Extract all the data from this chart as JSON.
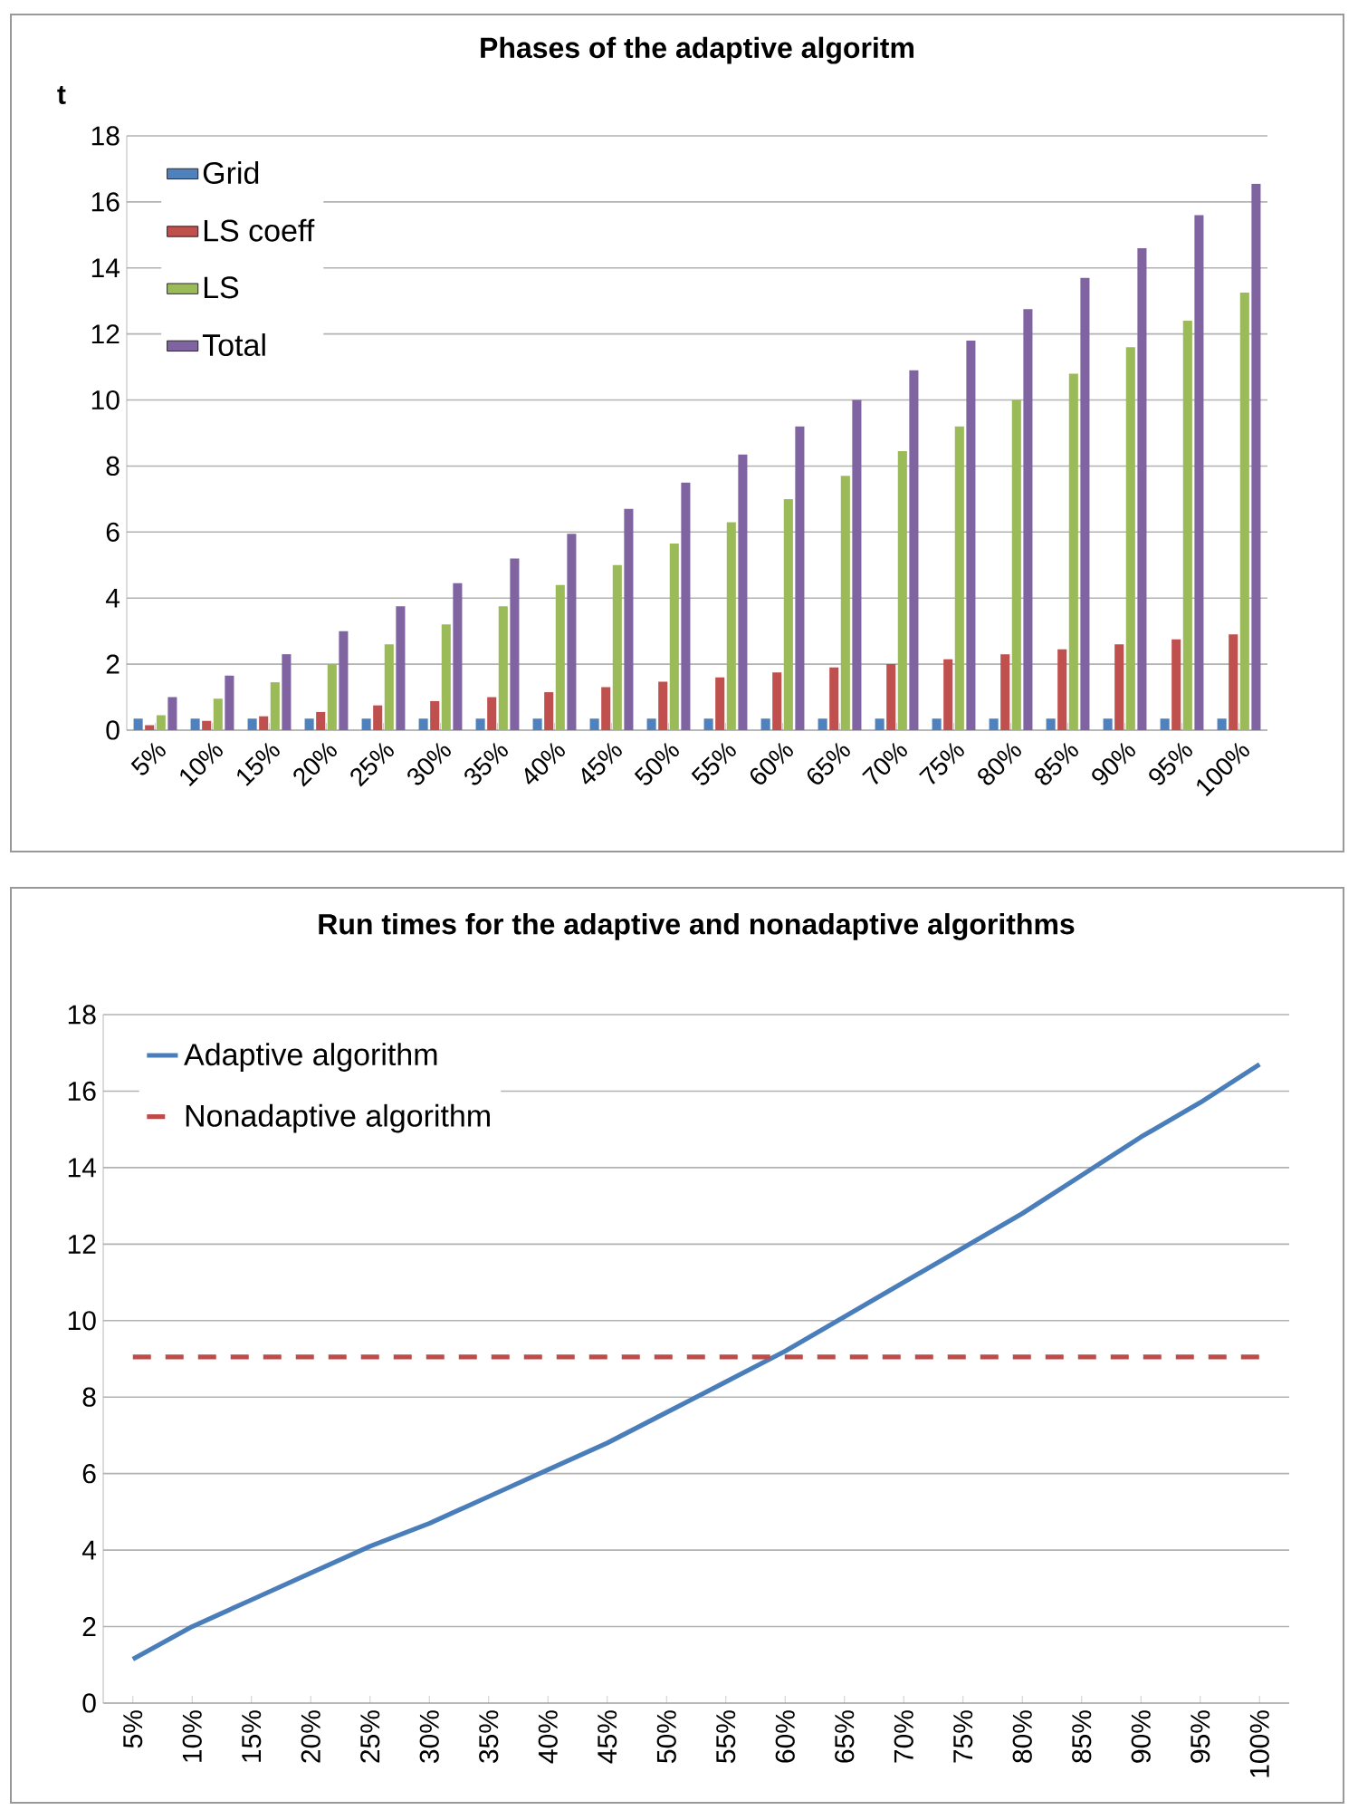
{
  "chart_data": [
    {
      "type": "bar",
      "title": "Phases of the adaptive algoritm",
      "ylabel": "t",
      "categories": [
        "5%",
        "10%",
        "15%",
        "20%",
        "25%",
        "30%",
        "35%",
        "40%",
        "45%",
        "50%",
        "55%",
        "60%",
        "65%",
        "70%",
        "75%",
        "80%",
        "85%",
        "90%",
        "95%",
        "100%"
      ],
      "series": [
        {
          "name": "Grid",
          "color": "#4f81bd",
          "values": [
            0.35,
            0.35,
            0.35,
            0.35,
            0.35,
            0.35,
            0.35,
            0.35,
            0.35,
            0.35,
            0.35,
            0.35,
            0.35,
            0.35,
            0.35,
            0.35,
            0.35,
            0.35,
            0.35,
            0.35
          ]
        },
        {
          "name": "LS coeff",
          "color": "#c0504d",
          "values": [
            0.15,
            0.28,
            0.42,
            0.55,
            0.75,
            0.88,
            1.0,
            1.15,
            1.3,
            1.47,
            1.6,
            1.75,
            1.9,
            2.0,
            2.15,
            2.3,
            2.45,
            2.6,
            2.75,
            2.9
          ]
        },
        {
          "name": "LS",
          "color": "#9bbb59",
          "values": [
            0.45,
            0.95,
            1.45,
            2.0,
            2.6,
            3.2,
            3.75,
            4.4,
            5.0,
            5.65,
            6.3,
            7.0,
            7.7,
            8.45,
            9.2,
            10.0,
            10.8,
            11.6,
            12.4,
            13.25
          ]
        },
        {
          "name": "Total",
          "color": "#8064a2",
          "values": [
            1.0,
            1.65,
            2.3,
            3.0,
            3.75,
            4.45,
            5.2,
            5.95,
            6.7,
            7.5,
            8.35,
            9.2,
            10.0,
            10.9,
            11.8,
            12.75,
            13.7,
            14.6,
            15.6,
            16.55
          ]
        }
      ],
      "ylim": [
        0,
        18
      ],
      "yticks": [
        0,
        2,
        4,
        6,
        8,
        10,
        12,
        14,
        16,
        18
      ],
      "grid": "y",
      "legend": "top left"
    },
    {
      "type": "line",
      "title": "Run times for the adaptive and nonadaptive algorithms",
      "categories": [
        "5%",
        "10%",
        "15%",
        "20%",
        "25%",
        "30%",
        "35%",
        "40%",
        "45%",
        "50%",
        "55%",
        "60%",
        "65%",
        "70%",
        "75%",
        "80%",
        "85%",
        "90%",
        "95%",
        "100%"
      ],
      "series": [
        {
          "name": "Adaptive algorithm",
          "color": "#4a7ebb",
          "line_style": "solid",
          "values": [
            1.15,
            2.0,
            2.7,
            3.4,
            4.1,
            4.7,
            5.4,
            6.1,
            6.8,
            7.6,
            8.4,
            9.2,
            10.1,
            11.0,
            11.9,
            12.8,
            13.8,
            14.8,
            15.7,
            16.7
          ]
        },
        {
          "name": "Nonadaptive algorithm",
          "color": "#be4b48",
          "line_style": "dashed",
          "values": [
            9.05,
            9.05,
            9.05,
            9.05,
            9.05,
            9.05,
            9.05,
            9.05,
            9.05,
            9.05,
            9.05,
            9.05,
            9.05,
            9.05,
            9.05,
            9.05,
            9.05,
            9.05,
            9.05,
            9.05
          ]
        }
      ],
      "ylim": [
        0,
        18
      ],
      "yticks": [
        0,
        2,
        4,
        6,
        8,
        10,
        12,
        14,
        16,
        18
      ],
      "grid": "y",
      "legend": "top left"
    }
  ]
}
